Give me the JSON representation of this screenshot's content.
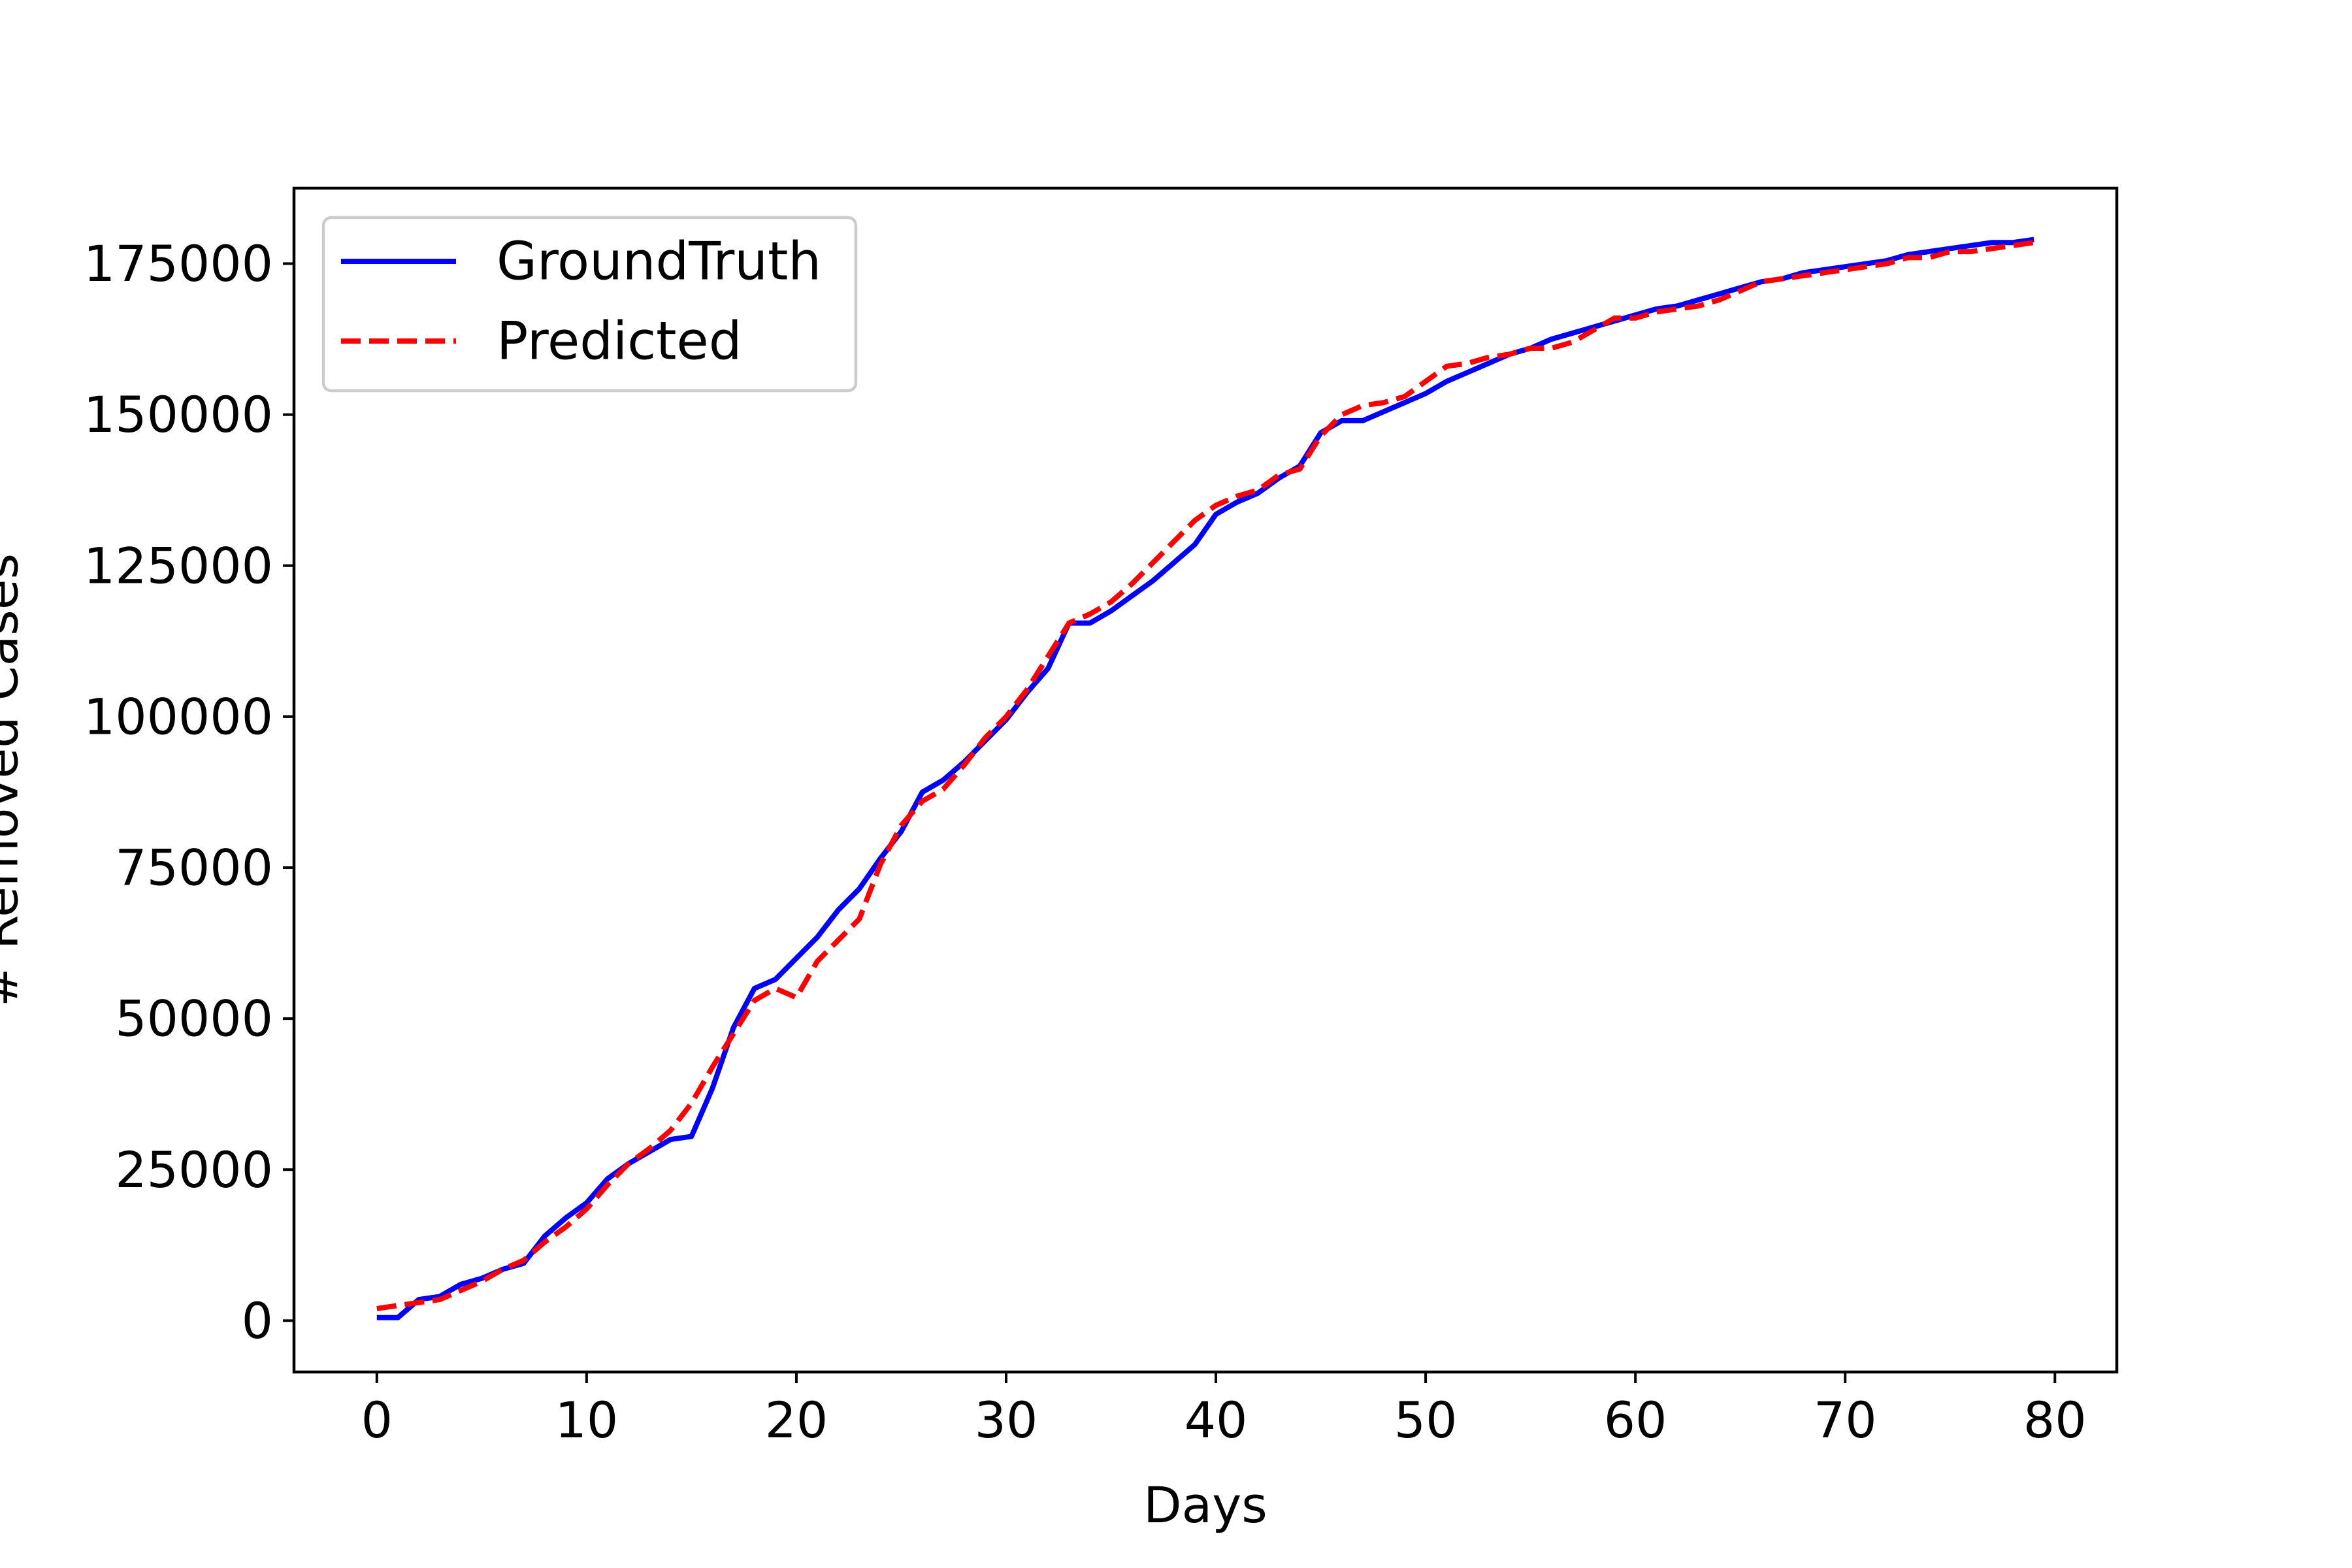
{
  "chart_data": {
    "type": "line",
    "title": "",
    "xlabel": "Days",
    "ylabel": "# Removed Cases",
    "xlim": [
      -3.95,
      82.95
    ],
    "ylim": [
      -8500,
      187500
    ],
    "xticks": [
      0,
      10,
      20,
      30,
      40,
      50,
      60,
      70,
      80
    ],
    "yticks": [
      0,
      25000,
      50000,
      75000,
      100000,
      125000,
      150000,
      175000
    ],
    "grid": false,
    "legend_position": "top-left",
    "series": [
      {
        "name": "GroundTruth",
        "color": "#0000ff",
        "linestyle": "solid",
        "x": [
          0,
          1,
          2,
          3,
          4,
          5,
          6,
          7,
          8,
          9,
          10,
          11,
          12,
          13,
          14,
          15,
          16,
          17,
          18,
          19,
          20,
          21,
          22,
          23,
          24,
          25,
          26,
          27,
          28,
          29,
          30,
          31,
          32,
          33,
          34,
          35,
          36,
          37,
          38,
          39,
          40,
          41,
          42,
          43,
          44,
          45,
          46,
          47,
          48,
          49,
          50,
          51,
          52,
          53,
          54,
          55,
          56,
          57,
          58,
          59,
          60,
          61,
          62,
          63,
          64,
          65,
          66,
          67,
          68,
          69,
          70,
          71,
          72,
          73,
          74,
          75,
          76,
          77,
          78,
          79
        ],
        "values": [
          500,
          500,
          3500,
          4000,
          6000,
          7000,
          8500,
          9500,
          14000,
          17000,
          19500,
          23500,
          26000,
          28000,
          30000,
          30500,
          38500,
          48500,
          55000,
          56500,
          60000,
          63500,
          68000,
          71500,
          76500,
          81000,
          87500,
          89500,
          92500,
          96000,
          99500,
          104000,
          108000,
          115500,
          115500,
          117500,
          120000,
          122500,
          125500,
          128500,
          133500,
          135500,
          137000,
          139500,
          141500,
          147000,
          149000,
          149000,
          150500,
          152000,
          153500,
          155500,
          157000,
          158500,
          160000,
          161000,
          162500,
          163500,
          164500,
          165500,
          166500,
          167500,
          168000,
          169000,
          170000,
          171000,
          172000,
          172500,
          173500,
          174000,
          174500,
          175000,
          175500,
          176500,
          177000,
          177500,
          178000,
          178500,
          178500,
          179000
        ]
      },
      {
        "name": "Predicted",
        "color": "#ff0000",
        "linestyle": "dashed",
        "x": [
          0,
          1,
          2,
          3,
          4,
          5,
          6,
          7,
          8,
          9,
          10,
          11,
          12,
          13,
          14,
          15,
          16,
          17,
          18,
          19,
          20,
          21,
          22,
          23,
          24,
          25,
          26,
          27,
          28,
          29,
          30,
          31,
          32,
          33,
          34,
          35,
          36,
          37,
          38,
          39,
          40,
          41,
          42,
          43,
          44,
          45,
          46,
          47,
          48,
          49,
          50,
          51,
          52,
          53,
          54,
          55,
          56,
          57,
          58,
          59,
          60,
          61,
          62,
          63,
          64,
          65,
          66,
          67,
          68,
          69,
          70,
          71,
          72,
          73,
          74,
          75,
          76,
          77,
          78,
          79
        ],
        "values": [
          2000,
          2500,
          3000,
          3500,
          5000,
          6500,
          8500,
          10000,
          13000,
          15500,
          18500,
          22500,
          26000,
          28500,
          31500,
          36000,
          42000,
          47500,
          53000,
          55000,
          53500,
          59500,
          63000,
          66500,
          75500,
          82000,
          86000,
          88000,
          92000,
          96500,
          100000,
          104500,
          110000,
          115500,
          117000,
          119000,
          122000,
          125500,
          129000,
          132500,
          135000,
          136500,
          137500,
          140000,
          141000,
          146500,
          150000,
          151500,
          152000,
          153000,
          155500,
          158000,
          158500,
          159500,
          160000,
          161000,
          161000,
          162000,
          164000,
          166000,
          166000,
          167000,
          167500,
          168000,
          169000,
          170500,
          172000,
          172500,
          173000,
          173500,
          174000,
          174500,
          175000,
          176000,
          176000,
          177000,
          177000,
          177500,
          178000,
          178500
        ]
      }
    ]
  }
}
